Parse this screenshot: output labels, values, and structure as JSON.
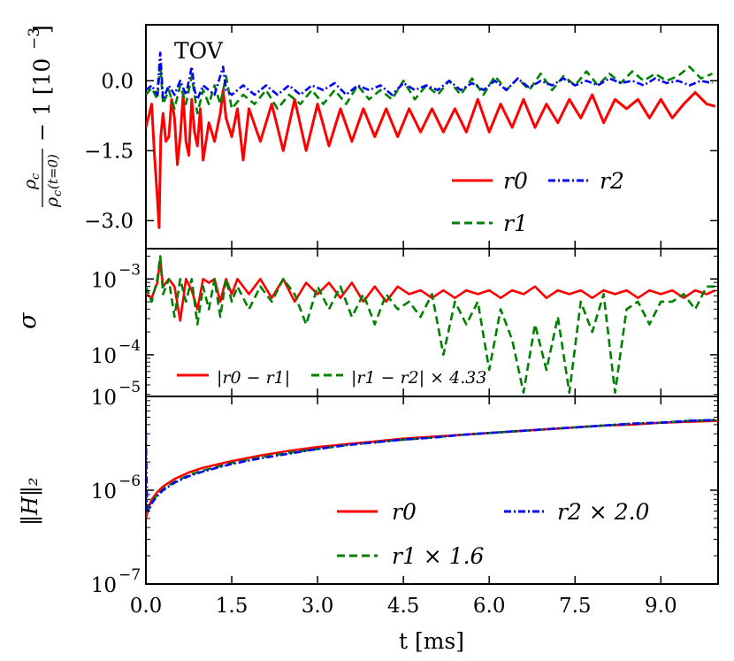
{
  "chart_data": [
    {
      "type": "line",
      "panel": "top",
      "annotation": "TOV",
      "ylabel_parts": [
        "ρ",
        "c",
        "ρ",
        "c",
        "(t=0)",
        "− 1  [10",
        "−3",
        "]"
      ],
      "ylim": [
        -3.6,
        1.2
      ],
      "yticks": [
        {
          "v": 0.0,
          "label": "0.0"
        },
        {
          "v": -1.5,
          "label": "−1.5"
        },
        {
          "v": -3.0,
          "label": "−3.0"
        }
      ],
      "series": [
        {
          "name": "r0",
          "color": "#ff0000",
          "dash": "solid",
          "x": [
            0.0,
            0.1,
            0.15,
            0.2,
            0.23,
            0.26,
            0.3,
            0.35,
            0.4,
            0.45,
            0.5,
            0.55,
            0.6,
            0.65,
            0.7,
            0.75,
            0.8,
            0.85,
            0.9,
            0.95,
            1.0,
            1.1,
            1.2,
            1.3,
            1.35,
            1.4,
            1.5,
            1.6,
            1.7,
            1.8,
            2.0,
            2.2,
            2.4,
            2.6,
            2.8,
            3.0,
            3.2,
            3.4,
            3.6,
            3.8,
            4.0,
            4.2,
            4.4,
            4.6,
            4.8,
            5.0,
            5.2,
            5.4,
            5.6,
            5.8,
            6.0,
            6.2,
            6.4,
            6.6,
            6.8,
            7.0,
            7.2,
            7.4,
            7.6,
            7.8,
            8.0,
            8.2,
            8.4,
            8.6,
            8.8,
            9.0,
            9.2,
            9.4,
            9.6,
            9.8,
            9.95
          ],
          "y": [
            -1.0,
            -0.5,
            -1.6,
            -2.5,
            -3.15,
            -1.2,
            -0.7,
            -1.3,
            -1.2,
            -0.4,
            -0.8,
            -1.8,
            -1.2,
            -0.3,
            -1.3,
            -1.6,
            -0.4,
            -1.1,
            -1.4,
            -0.6,
            -1.7,
            -0.9,
            -1.3,
            -0.7,
            -0.2,
            -0.8,
            -1.2,
            -0.6,
            -1.7,
            -0.6,
            -1.3,
            -0.5,
            -1.5,
            -0.4,
            -1.5,
            -0.5,
            -1.4,
            -0.6,
            -1.3,
            -0.6,
            -1.2,
            -0.6,
            -1.2,
            -0.6,
            -1.1,
            -0.6,
            -1.1,
            -0.6,
            -1.1,
            -0.4,
            -1.1,
            -0.5,
            -1.0,
            -0.4,
            -1.0,
            -0.5,
            -0.9,
            -0.4,
            -0.8,
            -0.3,
            -0.9,
            -0.4,
            -0.6,
            -0.4,
            -0.8,
            -0.4,
            -0.8,
            -0.5,
            -0.25,
            -0.5,
            -0.55
          ]
        },
        {
          "name": "r1",
          "color": "#008000",
          "dash": "dashed",
          "x": [
            0.0,
            0.1,
            0.2,
            0.25,
            0.3,
            0.4,
            0.5,
            0.6,
            0.7,
            0.8,
            0.85,
            0.9,
            1.0,
            1.1,
            1.2,
            1.3,
            1.4,
            1.5,
            1.7,
            1.9,
            2.1,
            2.3,
            2.5,
            2.7,
            2.9,
            3.1,
            3.3,
            3.5,
            3.7,
            3.9,
            4.1,
            4.3,
            4.5,
            4.7,
            4.9,
            5.1,
            5.3,
            5.5,
            5.7,
            5.9,
            6.1,
            6.3,
            6.5,
            6.7,
            6.9,
            7.1,
            7.3,
            7.5,
            7.7,
            7.9,
            8.1,
            8.3,
            8.5,
            8.7,
            8.9,
            9.1,
            9.3,
            9.5,
            9.7,
            9.9
          ],
          "y": [
            -0.3,
            -0.15,
            -0.4,
            0.35,
            -0.5,
            -0.2,
            -0.6,
            -0.1,
            -0.5,
            0.1,
            -0.3,
            -0.7,
            -0.2,
            -0.5,
            -0.1,
            -0.5,
            0.1,
            -0.6,
            -0.3,
            -0.5,
            -0.2,
            -0.6,
            -0.3,
            -0.5,
            -0.2,
            -0.5,
            -0.2,
            -0.5,
            -0.1,
            -0.4,
            -0.2,
            -0.4,
            0.0,
            -0.4,
            -0.1,
            -0.3,
            0.0,
            -0.3,
            0.05,
            -0.3,
            0.1,
            -0.2,
            0.05,
            -0.2,
            0.15,
            -0.2,
            0.1,
            -0.1,
            0.2,
            -0.1,
            0.15,
            -0.05,
            0.2,
            0.0,
            0.15,
            0.0,
            0.1,
            0.3,
            0.05,
            0.15
          ]
        },
        {
          "name": "r2",
          "color": "#0000ff",
          "dash": "dashdot",
          "x": [
            0.0,
            0.1,
            0.2,
            0.25,
            0.3,
            0.4,
            0.5,
            0.6,
            0.7,
            0.8,
            0.85,
            0.9,
            1.0,
            1.2,
            1.35,
            1.4,
            1.5,
            1.7,
            1.9,
            2.1,
            2.3,
            2.5,
            2.7,
            2.9,
            3.1,
            3.3,
            3.5,
            3.7,
            3.9,
            4.1,
            4.3,
            4.5,
            4.7,
            4.9,
            5.1,
            5.3,
            5.5,
            5.7,
            5.9,
            6.1,
            6.3,
            6.5,
            6.7,
            6.9,
            7.1,
            7.3,
            7.5,
            7.7,
            7.9,
            8.1,
            8.3,
            8.5,
            8.7,
            8.9,
            9.1,
            9.3,
            9.5,
            9.7,
            9.9
          ],
          "y": [
            -0.2,
            -0.1,
            -0.3,
            0.6,
            -0.4,
            -0.1,
            -0.3,
            0.0,
            -0.3,
            0.3,
            -0.2,
            -0.4,
            -0.1,
            -0.3,
            0.3,
            -0.2,
            -0.3,
            -0.1,
            -0.3,
            -0.1,
            -0.3,
            -0.1,
            -0.3,
            -0.1,
            -0.2,
            -0.05,
            -0.3,
            -0.1,
            -0.2,
            -0.1,
            -0.3,
            -0.05,
            -0.2,
            -0.1,
            -0.2,
            0.0,
            -0.2,
            -0.05,
            -0.2,
            0.0,
            -0.2,
            0.05,
            -0.15,
            0.0,
            -0.1,
            0.05,
            -0.1,
            0.0,
            -0.1,
            0.05,
            -0.05,
            0.0,
            -0.1,
            0.05,
            -0.05,
            0.0,
            -0.1,
            0.0,
            -0.05
          ]
        }
      ],
      "legend": [
        {
          "label": "r0",
          "series": 0
        },
        {
          "label": "r2",
          "series": 2
        },
        {
          "label": "r1",
          "series": 1
        }
      ]
    },
    {
      "type": "line",
      "panel": "middle",
      "ylabel": "σ",
      "yscale": "log",
      "ylim_exp": [
        -4.55,
        -2.6
      ],
      "yticks": [
        {
          "exp": -3,
          "base": "10",
          "sup": "−3"
        },
        {
          "exp": -4,
          "base": "10",
          "sup": "−4"
        }
      ],
      "series": [
        {
          "name": "|r0 − r1|",
          "color": "#ff0000",
          "dash": "solid",
          "x": [
            0.0,
            0.1,
            0.2,
            0.25,
            0.3,
            0.4,
            0.5,
            0.6,
            0.7,
            0.8,
            0.9,
            1.0,
            1.1,
            1.2,
            1.3,
            1.4,
            1.5,
            1.6,
            1.7,
            1.8,
            2.0,
            2.2,
            2.4,
            2.6,
            2.8,
            3.0,
            3.2,
            3.4,
            3.6,
            3.8,
            4.0,
            4.2,
            4.4,
            4.6,
            4.8,
            5.0,
            5.2,
            5.4,
            5.6,
            5.8,
            6.0,
            6.2,
            6.4,
            6.6,
            6.8,
            7.0,
            7.2,
            7.4,
            7.6,
            7.8,
            8.0,
            8.2,
            8.4,
            8.6,
            8.8,
            9.0,
            9.2,
            9.4,
            9.6,
            9.8,
            9.95
          ],
          "y": [
            -3.2,
            -3.25,
            -3.05,
            -2.75,
            -3.1,
            -3.0,
            -3.1,
            -3.55,
            -3.0,
            -3.15,
            -3.4,
            -3.0,
            -3.05,
            -3.0,
            -3.3,
            -3.0,
            -3.2,
            -3.0,
            -3.1,
            -3.2,
            -3.0,
            -3.25,
            -3.0,
            -3.3,
            -3.05,
            -3.2,
            -3.05,
            -3.25,
            -3.05,
            -3.3,
            -3.1,
            -3.3,
            -3.1,
            -3.2,
            -3.15,
            -3.25,
            -3.15,
            -3.25,
            -3.15,
            -3.2,
            -3.15,
            -3.25,
            -3.15,
            -3.2,
            -3.1,
            -3.25,
            -3.15,
            -3.2,
            -3.15,
            -3.25,
            -3.15,
            -3.2,
            -3.15,
            -3.25,
            -3.15,
            -3.2,
            -3.15,
            -3.25,
            -3.15,
            -3.2,
            -3.15
          ]
        },
        {
          "name": "|r1 − r2| × 4.33",
          "color": "#008000",
          "dash": "dashed",
          "x": [
            0.0,
            0.1,
            0.2,
            0.25,
            0.3,
            0.4,
            0.5,
            0.6,
            0.7,
            0.8,
            0.9,
            1.0,
            1.1,
            1.2,
            1.3,
            1.4,
            1.5,
            1.6,
            1.8,
            2.0,
            2.2,
            2.4,
            2.6,
            2.8,
            3.0,
            3.2,
            3.4,
            3.6,
            3.8,
            4.0,
            4.2,
            4.4,
            4.6,
            4.8,
            5.0,
            5.2,
            5.4,
            5.6,
            5.8,
            6.0,
            6.2,
            6.4,
            6.6,
            6.8,
            7.0,
            7.2,
            7.4,
            7.6,
            7.8,
            8.0,
            8.2,
            8.4,
            8.6,
            8.8,
            9.0,
            9.2,
            9.4,
            9.6,
            9.8,
            9.95
          ],
          "y": [
            -3.1,
            -3.3,
            -3.0,
            -2.7,
            -3.2,
            -3.0,
            -3.5,
            -3.0,
            -3.3,
            -3.0,
            -3.6,
            -3.1,
            -3.4,
            -3.0,
            -3.5,
            -3.0,
            -3.3,
            -3.1,
            -3.4,
            -3.1,
            -3.3,
            -3.0,
            -3.2,
            -3.6,
            -3.1,
            -3.4,
            -3.1,
            -3.5,
            -3.2,
            -3.6,
            -3.2,
            -3.4,
            -3.3,
            -3.5,
            -3.2,
            -4.0,
            -3.3,
            -3.6,
            -3.3,
            -4.2,
            -3.4,
            -3.8,
            -4.5,
            -3.6,
            -4.2,
            -3.5,
            -4.5,
            -3.3,
            -3.7,
            -3.2,
            -4.5,
            -3.4,
            -3.3,
            -3.6,
            -3.3,
            -3.3,
            -3.2,
            -3.4,
            -3.1,
            -3.1
          ]
        }
      ],
      "legend": [
        {
          "label": "|r0 − r1|",
          "series": 0
        },
        {
          "label": "|r1 − r2| × 4.33",
          "series": 1
        }
      ]
    },
    {
      "type": "line",
      "panel": "bottom",
      "ylabel": "‖H‖₂",
      "yscale": "log",
      "ylim_exp": [
        -7,
        -5
      ],
      "yticks": [
        {
          "exp": -5,
          "base": "10",
          "sup": "−5"
        },
        {
          "exp": -6,
          "base": "10",
          "sup": "−6"
        },
        {
          "exp": -7,
          "base": "10",
          "sup": "−7"
        }
      ],
      "xlabel": "t [ms]",
      "xlim": [
        0.0,
        10.0
      ],
      "xticks": [
        {
          "v": 0.0,
          "label": "0.0"
        },
        {
          "v": 1.5,
          "label": "1.5"
        },
        {
          "v": 3.0,
          "label": "3.0"
        },
        {
          "v": 4.5,
          "label": "4.5"
        },
        {
          "v": 6.0,
          "label": "6.0"
        },
        {
          "v": 7.5,
          "label": "7.5"
        },
        {
          "v": 9.0,
          "label": "9.0"
        }
      ],
      "series": [
        {
          "name": "r0",
          "color": "#ff0000",
          "dash": "solid",
          "x": [
            0.0,
            0.02,
            0.05,
            0.1,
            0.2,
            0.3,
            0.5,
            0.75,
            1.0,
            1.5,
            2.0,
            2.5,
            3.0,
            3.5,
            4.0,
            4.5,
            5.0,
            5.5,
            6.0,
            6.5,
            7.0,
            7.5,
            8.0,
            8.5,
            9.0,
            9.5,
            10.0
          ],
          "y": [
            -6.3,
            -6.25,
            -6.18,
            -6.1,
            -6.02,
            -5.96,
            -5.88,
            -5.81,
            -5.76,
            -5.69,
            -5.63,
            -5.58,
            -5.54,
            -5.51,
            -5.48,
            -5.45,
            -5.43,
            -5.41,
            -5.39,
            -5.37,
            -5.35,
            -5.33,
            -5.31,
            -5.3,
            -5.28,
            -5.27,
            -5.26
          ]
        },
        {
          "name": "r1 × 1.6",
          "color": "#008000",
          "dash": "dashed",
          "x": [
            0.0,
            0.02,
            0.05,
            0.1,
            0.2,
            0.3,
            0.5,
            0.75,
            1.0,
            1.5,
            2.0,
            2.5,
            3.0,
            3.5,
            4.0,
            4.5,
            5.0,
            5.5,
            6.0,
            6.5,
            7.0,
            7.5,
            8.0,
            8.5,
            9.0,
            9.5,
            10.0
          ],
          "y": [
            -6.2,
            -6.22,
            -6.2,
            -6.12,
            -6.05,
            -5.99,
            -5.91,
            -5.84,
            -5.79,
            -5.71,
            -5.65,
            -5.6,
            -5.56,
            -5.52,
            -5.49,
            -5.46,
            -5.44,
            -5.41,
            -5.39,
            -5.37,
            -5.35,
            -5.33,
            -5.31,
            -5.29,
            -5.28,
            -5.26,
            -5.25
          ]
        },
        {
          "name": "r2 × 2.0",
          "color": "#0000ff",
          "dash": "dashdot",
          "x": [
            0.0,
            0.02,
            0.05,
            0.1,
            0.2,
            0.3,
            0.5,
            0.75,
            1.0,
            1.5,
            2.0,
            2.5,
            3.0,
            3.5,
            4.0,
            4.5,
            5.0,
            5.5,
            6.0,
            6.5,
            7.0,
            7.5,
            8.0,
            8.5,
            9.0,
            9.5,
            10.0
          ],
          "y": [
            -5.4,
            -6.2,
            -6.22,
            -6.14,
            -6.06,
            -6.0,
            -5.92,
            -5.85,
            -5.8,
            -5.72,
            -5.66,
            -5.61,
            -5.56,
            -5.52,
            -5.49,
            -5.46,
            -5.44,
            -5.41,
            -5.39,
            -5.37,
            -5.35,
            -5.33,
            -5.31,
            -5.29,
            -5.28,
            -5.26,
            -5.25
          ]
        }
      ],
      "legend": [
        {
          "label": "r0",
          "series": 0
        },
        {
          "label": "r2 × 2.0",
          "series": 2
        },
        {
          "label": "r1 × 1.6",
          "series": 1
        }
      ]
    }
  ]
}
